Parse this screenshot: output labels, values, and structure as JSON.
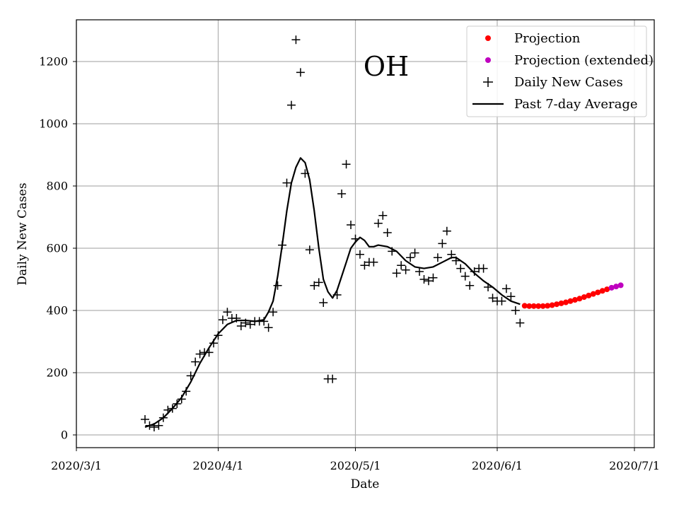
{
  "chart_data": {
    "type": "scatter",
    "title": "",
    "annotation": "OH",
    "xlabel": "Date",
    "ylabel": "Daily New Cases",
    "grid": true,
    "legend_placement": "top-right",
    "xlim": [
      "2020-03-01",
      "2020-07-01"
    ],
    "ylim": [
      -40,
      1330
    ],
    "x_ticks": [
      {
        "date": "2020-03-01",
        "label": "2020/3/1"
      },
      {
        "date": "2020-04-01",
        "label": "2020/4/1"
      },
      {
        "date": "2020-05-01",
        "label": "2020/5/1"
      },
      {
        "date": "2020-06-01",
        "label": "2020/6/1"
      },
      {
        "date": "2020-07-01",
        "label": "2020/7/1"
      }
    ],
    "y_ticks": [
      0,
      200,
      400,
      600,
      800,
      1000,
      1200
    ],
    "colors": {
      "projection": "#ff0000",
      "projection_extended": "#bf00bf",
      "daily": "#000000",
      "average": "#000000"
    },
    "legend": [
      {
        "label": "Projection",
        "marker": "dot",
        "color": "#ff0000"
      },
      {
        "label": "Projection (extended)",
        "marker": "dot",
        "color": "#bf00bf"
      },
      {
        "label": "Daily New Cases",
        "marker": "plus",
        "color": "#000000"
      },
      {
        "label": "Past 7-day Average",
        "marker": "line",
        "color": "#000000"
      }
    ],
    "series": [
      {
        "name": "Daily New Cases",
        "kind": "scatter",
        "points": [
          [
            "2020-03-16",
            50
          ],
          [
            "2020-03-17",
            30
          ],
          [
            "2020-03-18",
            25
          ],
          [
            "2020-03-19",
            30
          ],
          [
            "2020-03-20",
            55
          ],
          [
            "2020-03-21",
            80
          ],
          [
            "2020-03-22",
            85
          ],
          [
            "2020-03-23",
            100
          ],
          [
            "2020-03-24",
            115
          ],
          [
            "2020-03-25",
            140
          ],
          [
            "2020-03-26",
            190
          ],
          [
            "2020-03-27",
            235
          ],
          [
            "2020-03-28",
            260
          ],
          [
            "2020-03-29",
            265
          ],
          [
            "2020-03-30",
            265
          ],
          [
            "2020-03-31",
            295
          ],
          [
            "2020-04-01",
            320
          ],
          [
            "2020-04-02",
            370
          ],
          [
            "2020-04-03",
            395
          ],
          [
            "2020-04-04",
            375
          ],
          [
            "2020-04-05",
            375
          ],
          [
            "2020-04-06",
            350
          ],
          [
            "2020-04-07",
            360
          ],
          [
            "2020-04-08",
            355
          ],
          [
            "2020-04-09",
            365
          ],
          [
            "2020-04-10",
            365
          ],
          [
            "2020-04-11",
            365
          ],
          [
            "2020-04-12",
            345
          ],
          [
            "2020-04-13",
            395
          ],
          [
            "2020-04-14",
            480
          ],
          [
            "2020-04-15",
            610
          ],
          [
            "2020-04-16",
            810
          ],
          [
            "2020-04-17",
            1060
          ],
          [
            "2020-04-18",
            1270
          ],
          [
            "2020-04-19",
            1165
          ],
          [
            "2020-04-20",
            840
          ],
          [
            "2020-04-21",
            595
          ],
          [
            "2020-04-22",
            480
          ],
          [
            "2020-04-23",
            490
          ],
          [
            "2020-04-24",
            425
          ],
          [
            "2020-04-25",
            180
          ],
          [
            "2020-04-26",
            180
          ],
          [
            "2020-04-27",
            450
          ],
          [
            "2020-04-28",
            775
          ],
          [
            "2020-04-29",
            870
          ],
          [
            "2020-04-30",
            675
          ],
          [
            "2020-05-01",
            630
          ],
          [
            "2020-05-02",
            580
          ],
          [
            "2020-05-03",
            545
          ],
          [
            "2020-05-04",
            555
          ],
          [
            "2020-05-05",
            555
          ],
          [
            "2020-05-06",
            680
          ],
          [
            "2020-05-07",
            705
          ],
          [
            "2020-05-08",
            650
          ],
          [
            "2020-05-09",
            590
          ],
          [
            "2020-05-10",
            520
          ],
          [
            "2020-05-11",
            545
          ],
          [
            "2020-05-12",
            530
          ],
          [
            "2020-05-13",
            570
          ],
          [
            "2020-05-14",
            585
          ],
          [
            "2020-05-15",
            525
          ],
          [
            "2020-05-16",
            500
          ],
          [
            "2020-05-17",
            495
          ],
          [
            "2020-05-18",
            505
          ],
          [
            "2020-05-19",
            570
          ],
          [
            "2020-05-20",
            615
          ],
          [
            "2020-05-21",
            655
          ],
          [
            "2020-05-22",
            580
          ],
          [
            "2020-05-23",
            560
          ],
          [
            "2020-05-24",
            535
          ],
          [
            "2020-05-25",
            510
          ],
          [
            "2020-05-26",
            480
          ],
          [
            "2020-05-27",
            525
          ],
          [
            "2020-05-28",
            535
          ],
          [
            "2020-05-29",
            535
          ],
          [
            "2020-05-30",
            475
          ],
          [
            "2020-05-31",
            440
          ],
          [
            "2020-06-01",
            430
          ],
          [
            "2020-06-02",
            430
          ],
          [
            "2020-06-03",
            470
          ],
          [
            "2020-06-04",
            445
          ],
          [
            "2020-06-05",
            400
          ],
          [
            "2020-06-06",
            360
          ]
        ]
      },
      {
        "name": "Past 7-day Average",
        "kind": "line",
        "points": [
          [
            "2020-03-16",
            25
          ],
          [
            "2020-03-18",
            35
          ],
          [
            "2020-03-20",
            55
          ],
          [
            "2020-03-22",
            85
          ],
          [
            "2020-03-24",
            120
          ],
          [
            "2020-03-26",
            170
          ],
          [
            "2020-03-28",
            230
          ],
          [
            "2020-03-30",
            280
          ],
          [
            "2020-04-01",
            325
          ],
          [
            "2020-04-03",
            355
          ],
          [
            "2020-04-05",
            368
          ],
          [
            "2020-04-07",
            368
          ],
          [
            "2020-04-09",
            365
          ],
          [
            "2020-04-11",
            370
          ],
          [
            "2020-04-12",
            395
          ],
          [
            "2020-04-13",
            430
          ],
          [
            "2020-04-14",
            510
          ],
          [
            "2020-04-15",
            610
          ],
          [
            "2020-04-16",
            720
          ],
          [
            "2020-04-17",
            810
          ],
          [
            "2020-04-18",
            860
          ],
          [
            "2020-04-19",
            890
          ],
          [
            "2020-04-20",
            875
          ],
          [
            "2020-04-21",
            820
          ],
          [
            "2020-04-22",
            720
          ],
          [
            "2020-04-23",
            600
          ],
          [
            "2020-04-24",
            500
          ],
          [
            "2020-04-25",
            460
          ],
          [
            "2020-04-26",
            440
          ],
          [
            "2020-04-27",
            465
          ],
          [
            "2020-04-28",
            510
          ],
          [
            "2020-04-29",
            555
          ],
          [
            "2020-04-30",
            600
          ],
          [
            "2020-05-01",
            620
          ],
          [
            "2020-05-02",
            635
          ],
          [
            "2020-05-03",
            625
          ],
          [
            "2020-05-04",
            605
          ],
          [
            "2020-05-05",
            605
          ],
          [
            "2020-05-06",
            610
          ],
          [
            "2020-05-08",
            605
          ],
          [
            "2020-05-10",
            590
          ],
          [
            "2020-05-12",
            560
          ],
          [
            "2020-05-14",
            540
          ],
          [
            "2020-05-16",
            535
          ],
          [
            "2020-05-18",
            540
          ],
          [
            "2020-05-20",
            555
          ],
          [
            "2020-05-22",
            570
          ],
          [
            "2020-05-23",
            570
          ],
          [
            "2020-05-25",
            550
          ],
          [
            "2020-05-27",
            520
          ],
          [
            "2020-05-29",
            495
          ],
          [
            "2020-05-31",
            475
          ],
          [
            "2020-06-02",
            450
          ],
          [
            "2020-06-04",
            430
          ],
          [
            "2020-06-06",
            420
          ]
        ]
      },
      {
        "name": "Projection",
        "kind": "dots",
        "points": [
          [
            "2020-06-07",
            415
          ],
          [
            "2020-06-08",
            414
          ],
          [
            "2020-06-09",
            414
          ],
          [
            "2020-06-10",
            414
          ],
          [
            "2020-06-11",
            414
          ],
          [
            "2020-06-12",
            415
          ],
          [
            "2020-06-13",
            417
          ],
          [
            "2020-06-14",
            420
          ],
          [
            "2020-06-15",
            423
          ],
          [
            "2020-06-16",
            426
          ],
          [
            "2020-06-17",
            430
          ],
          [
            "2020-06-18",
            434
          ],
          [
            "2020-06-19",
            438
          ],
          [
            "2020-06-20",
            443
          ],
          [
            "2020-06-21",
            448
          ],
          [
            "2020-06-22",
            453
          ],
          [
            "2020-06-23",
            458
          ],
          [
            "2020-06-24",
            463
          ],
          [
            "2020-06-25",
            468
          ]
        ]
      },
      {
        "name": "Projection (extended)",
        "kind": "dots",
        "points": [
          [
            "2020-06-26",
            473
          ],
          [
            "2020-06-27",
            477
          ],
          [
            "2020-06-28",
            481
          ]
        ]
      }
    ]
  }
}
